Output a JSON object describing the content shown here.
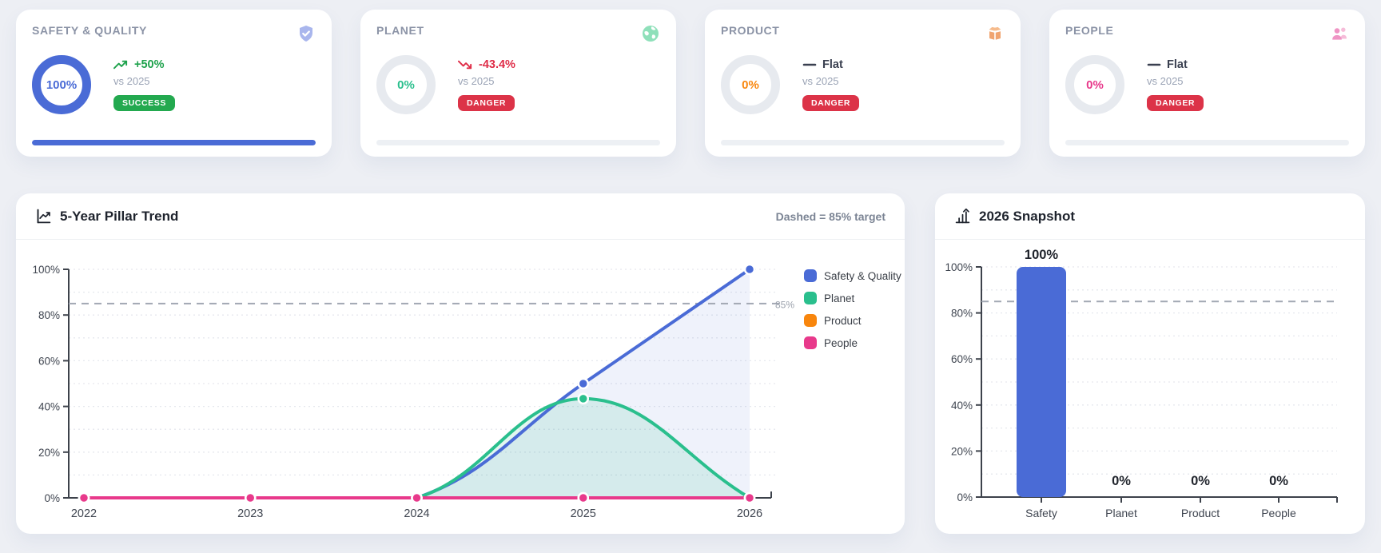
{
  "theme": {
    "page_bg": "#edeff4",
    "card_bg": "#ffffff",
    "accent_blue": "#4a6bd6",
    "accent_green": "#2abf8d",
    "accent_orange": "#f8860d",
    "accent_pink": "#e8398b",
    "success": "#23a94f",
    "danger": "#dc3348",
    "axis": "#3d424b",
    "grid": "#e6e8ee",
    "target_dash": "#a2a8b3",
    "muted_text": "#9aa3b5"
  },
  "kpi_cards": [
    {
      "title": "SAFETY & QUALITY",
      "icon": "shield-check-icon",
      "value": "100%",
      "value_color": "#4a6bd6",
      "ring_pct": 100,
      "ring_color": "#4a6bd6",
      "trend_icon": "trending-up-icon",
      "delta": "+50%",
      "delta_color": "#1ea24c",
      "vs": "vs 2025",
      "badge": "SUCCESS",
      "badge_color": "#23a94f",
      "bar_pct": 100,
      "bar_color": "#4a6bd6"
    },
    {
      "title": "PLANET",
      "icon": "globe-icon",
      "value": "0%",
      "value_color": "#2abf8d",
      "ring_pct": 0,
      "ring_color": "#e7eaef",
      "trend_icon": "trending-down-icon",
      "delta": "-43.4%",
      "delta_color": "#df2c47",
      "vs": "vs 2025",
      "badge": "DANGER",
      "badge_color": "#dc3348",
      "bar_pct": 0,
      "bar_color": "#2abf8d"
    },
    {
      "title": "PRODUCT",
      "icon": "package-icon",
      "value": "0%",
      "value_color": "#f8860d",
      "ring_pct": 0,
      "ring_color": "#e7eaef",
      "trend_icon": "minus-icon",
      "delta": "Flat",
      "delta_color": "#3a4050",
      "vs": "vs 2025",
      "badge": "DANGER",
      "badge_color": "#dc3348",
      "bar_pct": 0,
      "bar_color": "#f8860d"
    },
    {
      "title": "PEOPLE",
      "icon": "people-icon",
      "value": "0%",
      "value_color": "#e8398b",
      "ring_pct": 0,
      "ring_color": "#e7eaef",
      "trend_icon": "minus-icon",
      "delta": "Flat",
      "delta_color": "#3a4050",
      "vs": "vs 2025",
      "badge": "DANGER",
      "badge_color": "#dc3348",
      "bar_pct": 0,
      "bar_color": "#e8398b"
    }
  ],
  "chart_data": [
    {
      "type": "line",
      "title": "5-Year Pillar Trend",
      "title_icon": "line-chart-icon",
      "note": "Dashed = 85% target",
      "x": [
        "2022",
        "2023",
        "2024",
        "2025",
        "2026"
      ],
      "series": [
        {
          "name": "Safety & Quality",
          "color": "#4a6bd6",
          "values": [
            0,
            0,
            0,
            50,
            100
          ],
          "area_fill": true
        },
        {
          "name": "Planet",
          "color": "#2abf8d",
          "values": [
            0,
            0,
            0,
            43.4,
            0
          ],
          "area_fill": true
        },
        {
          "name": "Product",
          "color": "#f8860d",
          "values": [
            0,
            0,
            0,
            0,
            0
          ],
          "area_fill": false
        },
        {
          "name": "People",
          "color": "#e8398b",
          "values": [
            0,
            0,
            0,
            0,
            0
          ],
          "area_fill": false
        }
      ],
      "ylim": [
        0,
        100
      ],
      "yticks": [
        0,
        20,
        40,
        60,
        80,
        100
      ],
      "ytick_suffix": "%",
      "grid": "dotted every 10%",
      "target_line": {
        "value": 85,
        "label": "85%"
      },
      "legend_position": "right"
    },
    {
      "type": "bar",
      "title": "2026 Snapshot",
      "title_icon": "bar-chart-icon",
      "categories": [
        "Safety",
        "Planet",
        "Product",
        "People"
      ],
      "values": [
        100,
        0,
        0,
        0
      ],
      "value_labels": [
        "100%",
        "0%",
        "0%",
        "0%"
      ],
      "bar_colors": [
        "#4a6bd6",
        "#2abf8d",
        "#f8860d",
        "#e8398b"
      ],
      "ylim": [
        0,
        100
      ],
      "yticks": [
        0,
        20,
        40,
        60,
        80,
        100
      ],
      "ytick_suffix": "%",
      "grid": "dotted every 10%",
      "target_line": {
        "value": 85,
        "label": ""
      }
    }
  ]
}
